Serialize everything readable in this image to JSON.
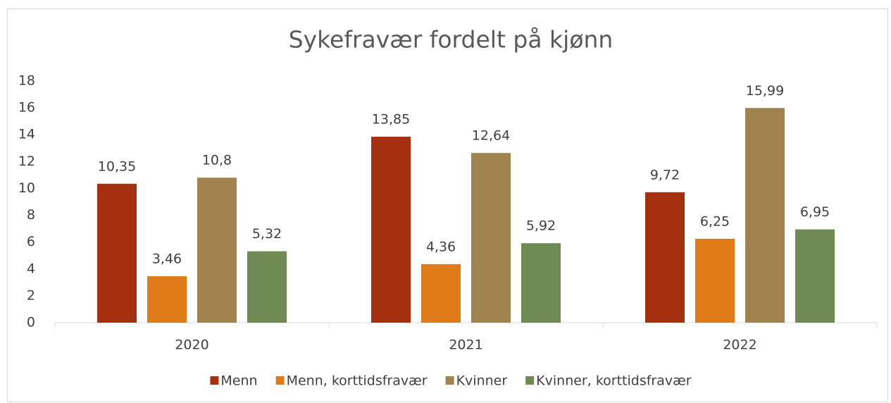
{
  "chart_data": {
    "type": "bar",
    "title": "Sykefravær fordelt på kjønn",
    "categories": [
      "2020",
      "2021",
      "2022"
    ],
    "series": [
      {
        "name": "Menn",
        "color": "#a5300f",
        "values": [
          10.35,
          13.85,
          9.72
        ],
        "value_labels": [
          "10,35",
          "13,85",
          "9,72"
        ]
      },
      {
        "name": "Menn, korttidsfravær",
        "color": "#e07b19",
        "values": [
          3.46,
          4.36,
          6.25
        ],
        "value_labels": [
          "3,46",
          "4,36",
          "6,25"
        ]
      },
      {
        "name": "Kvinner",
        "color": "#a0834f",
        "values": [
          10.8,
          12.64,
          15.99
        ],
        "value_labels": [
          "10,8",
          "12,64",
          "15,99"
        ]
      },
      {
        "name": "Kvinner, korttidsfravær",
        "color": "#6f8a53",
        "values": [
          5.32,
          5.92,
          6.95
        ],
        "value_labels": [
          "5,32",
          "5,92",
          "6,95"
        ]
      }
    ],
    "ylim": [
      0,
      18
    ],
    "yticks": [
      0,
      2,
      4,
      6,
      8,
      10,
      12,
      14,
      16,
      18
    ],
    "grid": false,
    "legend": "bottom"
  }
}
